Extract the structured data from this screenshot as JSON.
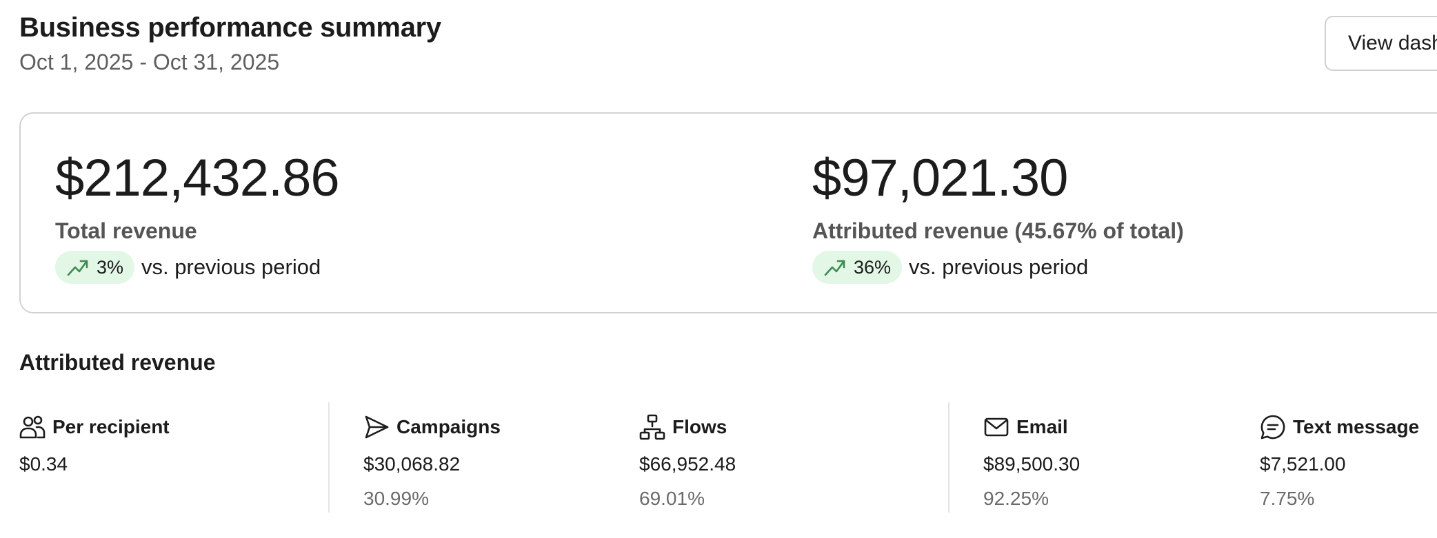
{
  "header": {
    "title": "Business performance summary",
    "date_range": "Oct 1, 2025 - Oct 31, 2025",
    "view_button_label": "View dashboard"
  },
  "summary": {
    "total_revenue": {
      "value": "$212,432.86",
      "label": "Total revenue",
      "change": "3%",
      "change_icon": "trending-up-icon",
      "comparison": "vs. previous period"
    },
    "attributed_revenue": {
      "value": "$97,021.30",
      "label": "Attributed revenue (45.67% of total)",
      "change": "36%",
      "change_icon": "trending-up-icon",
      "comparison": "vs. previous period"
    }
  },
  "attributed": {
    "section_title": "Attributed revenue",
    "stats": [
      {
        "icon": "users-icon",
        "label": "Per recipient",
        "value": "$0.34",
        "percent": ""
      },
      {
        "icon": "send-icon",
        "label": "Campaigns",
        "value": "$30,068.82",
        "percent": "30.99%"
      },
      {
        "icon": "flow-icon",
        "label": "Flows",
        "value": "$66,952.48",
        "percent": "69.01%"
      },
      {
        "icon": "mail-icon",
        "label": "Email",
        "value": "$89,500.30",
        "percent": "92.25%"
      },
      {
        "icon": "message-icon",
        "label": "Text message",
        "value": "$7,521.00",
        "percent": "7.75%"
      }
    ]
  },
  "colors": {
    "badge_bg": "#e3f7e6",
    "trend_icon": "#3d8a52",
    "text_primary": "#1c1c1c",
    "text_secondary": "#5f5f5f"
  }
}
